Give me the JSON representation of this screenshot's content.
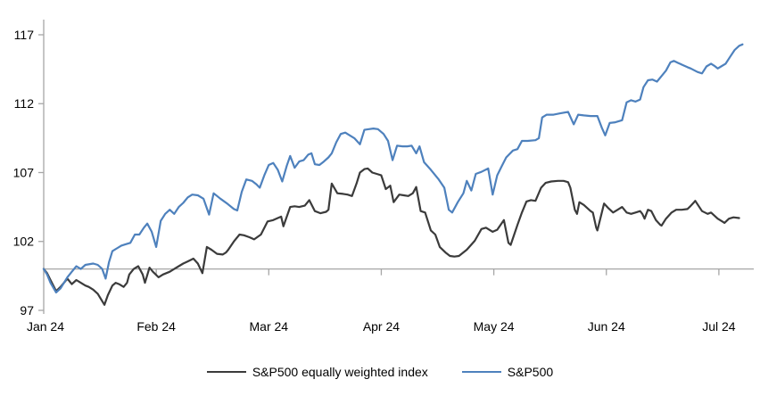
{
  "chart_data": {
    "type": "line",
    "title": "",
    "xlabel": "",
    "ylabel": "",
    "grid": false,
    "axis_color": "#A6A6A6",
    "x_axis": {
      "tick_labels": [
        "Jan 24",
        "Feb 24",
        "Mar 24",
        "Apr 24",
        "May 24",
        "Jun 24",
        "Jul 24"
      ],
      "tick_positions_months": [
        0,
        1,
        2,
        3,
        4,
        5,
        6
      ],
      "range_months": [
        0,
        6.31
      ],
      "baseline_value": 100
    },
    "y_axis": {
      "tick_labels": [
        "97",
        "102",
        "107",
        "112",
        "117"
      ],
      "tick_values": [
        97,
        102,
        107,
        112,
        117
      ],
      "range": [
        96.74,
        118.1
      ]
    },
    "legend": {
      "position": "bottom-center"
    },
    "series": [
      {
        "name": "S&P500 equally weighted index",
        "color": "#3B3B3B",
        "points": [
          [
            0.0,
            100.0
          ],
          [
            0.03,
            99.7
          ],
          [
            0.06,
            99.2
          ],
          [
            0.11,
            98.4
          ],
          [
            0.15,
            98.7
          ],
          [
            0.19,
            99.1
          ],
          [
            0.21,
            99.3
          ],
          [
            0.25,
            98.9
          ],
          [
            0.29,
            99.2
          ],
          [
            0.33,
            99.0
          ],
          [
            0.37,
            98.8
          ],
          [
            0.4,
            98.7
          ],
          [
            0.44,
            98.5
          ],
          [
            0.48,
            98.2
          ],
          [
            0.51,
            97.8
          ],
          [
            0.54,
            97.4
          ],
          [
            0.57,
            98.1
          ],
          [
            0.61,
            98.8
          ],
          [
            0.64,
            99.0
          ],
          [
            0.67,
            98.9
          ],
          [
            0.71,
            98.7
          ],
          [
            0.74,
            99.0
          ],
          [
            0.76,
            99.6
          ],
          [
            0.8,
            100.0
          ],
          [
            0.84,
            100.2
          ],
          [
            0.88,
            99.6
          ],
          [
            0.9,
            99.0
          ],
          [
            0.94,
            100.1
          ],
          [
            0.97,
            99.8
          ],
          [
            1.02,
            99.4
          ],
          [
            1.06,
            99.6
          ],
          [
            1.12,
            99.8
          ],
          [
            1.16,
            100.0
          ],
          [
            1.2,
            100.2
          ],
          [
            1.24,
            100.4
          ],
          [
            1.28,
            100.55
          ],
          [
            1.33,
            100.75
          ],
          [
            1.37,
            100.4
          ],
          [
            1.41,
            99.7
          ],
          [
            1.45,
            101.6
          ],
          [
            1.49,
            101.4
          ],
          [
            1.54,
            101.1
          ],
          [
            1.59,
            101.05
          ],
          [
            1.62,
            101.2
          ],
          [
            1.64,
            101.4
          ],
          [
            1.69,
            102.0
          ],
          [
            1.74,
            102.5
          ],
          [
            1.78,
            102.45
          ],
          [
            1.83,
            102.3
          ],
          [
            1.87,
            102.15
          ],
          [
            1.93,
            102.5
          ],
          [
            1.99,
            103.45
          ],
          [
            2.04,
            103.55
          ],
          [
            2.08,
            103.7
          ],
          [
            2.11,
            103.8
          ],
          [
            2.13,
            103.1
          ],
          [
            2.19,
            104.5
          ],
          [
            2.23,
            104.55
          ],
          [
            2.27,
            104.5
          ],
          [
            2.32,
            104.6
          ],
          [
            2.36,
            105.0
          ],
          [
            2.41,
            104.2
          ],
          [
            2.46,
            104.05
          ],
          [
            2.51,
            104.15
          ],
          [
            2.53,
            104.3
          ],
          [
            2.56,
            106.2
          ],
          [
            2.61,
            105.5
          ],
          [
            2.66,
            105.45
          ],
          [
            2.7,
            105.4
          ],
          [
            2.74,
            105.3
          ],
          [
            2.78,
            106.2
          ],
          [
            2.81,
            107.0
          ],
          [
            2.85,
            107.25
          ],
          [
            2.88,
            107.3
          ],
          [
            2.92,
            107.0
          ],
          [
            2.96,
            106.9
          ],
          [
            3.0,
            106.8
          ],
          [
            3.04,
            105.8
          ],
          [
            3.08,
            106.05
          ],
          [
            3.11,
            104.85
          ],
          [
            3.16,
            105.4
          ],
          [
            3.2,
            105.35
          ],
          [
            3.24,
            105.3
          ],
          [
            3.28,
            105.5
          ],
          [
            3.31,
            105.95
          ],
          [
            3.35,
            104.2
          ],
          [
            3.39,
            104.1
          ],
          [
            3.44,
            102.8
          ],
          [
            3.48,
            102.5
          ],
          [
            3.52,
            101.6
          ],
          [
            3.57,
            101.2
          ],
          [
            3.61,
            100.95
          ],
          [
            3.65,
            100.9
          ],
          [
            3.69,
            100.95
          ],
          [
            3.76,
            101.4
          ],
          [
            3.83,
            102.05
          ],
          [
            3.89,
            102.9
          ],
          [
            3.93,
            103.0
          ],
          [
            3.99,
            102.7
          ],
          [
            4.03,
            102.85
          ],
          [
            4.09,
            103.55
          ],
          [
            4.13,
            101.9
          ],
          [
            4.15,
            101.75
          ],
          [
            4.21,
            103.2
          ],
          [
            4.25,
            104.1
          ],
          [
            4.29,
            104.9
          ],
          [
            4.33,
            105.0
          ],
          [
            4.37,
            104.95
          ],
          [
            4.42,
            105.9
          ],
          [
            4.46,
            106.25
          ],
          [
            4.51,
            106.35
          ],
          [
            4.57,
            106.4
          ],
          [
            4.62,
            106.4
          ],
          [
            4.66,
            106.3
          ],
          [
            4.68,
            105.9
          ],
          [
            4.72,
            104.3
          ],
          [
            4.74,
            104.0
          ],
          [
            4.76,
            104.85
          ],
          [
            4.8,
            104.65
          ],
          [
            4.86,
            104.2
          ],
          [
            4.88,
            104.1
          ],
          [
            4.91,
            103.0
          ],
          [
            4.92,
            102.8
          ],
          [
            4.98,
            104.75
          ],
          [
            5.02,
            104.4
          ],
          [
            5.06,
            104.1
          ],
          [
            5.1,
            104.3
          ],
          [
            5.14,
            104.5
          ],
          [
            5.18,
            104.1
          ],
          [
            5.22,
            104.0
          ],
          [
            5.26,
            104.1
          ],
          [
            5.3,
            104.2
          ],
          [
            5.32,
            104.0
          ],
          [
            5.34,
            103.65
          ],
          [
            5.37,
            104.3
          ],
          [
            5.4,
            104.2
          ],
          [
            5.44,
            103.55
          ],
          [
            5.48,
            103.2
          ],
          [
            5.49,
            103.15
          ],
          [
            5.53,
            103.65
          ],
          [
            5.58,
            104.1
          ],
          [
            5.62,
            104.3
          ],
          [
            5.67,
            104.3
          ],
          [
            5.72,
            104.35
          ],
          [
            5.74,
            104.5
          ],
          [
            5.78,
            104.85
          ],
          [
            5.79,
            104.95
          ],
          [
            5.85,
            104.2
          ],
          [
            5.9,
            104.0
          ],
          [
            5.93,
            104.1
          ],
          [
            5.99,
            103.65
          ],
          [
            6.03,
            103.45
          ],
          [
            6.05,
            103.35
          ],
          [
            6.09,
            103.65
          ],
          [
            6.13,
            103.75
          ],
          [
            6.18,
            103.7
          ]
        ]
      },
      {
        "name": "S&P500",
        "color": "#4E81BD",
        "points": [
          [
            0.0,
            100.0
          ],
          [
            0.03,
            99.6
          ],
          [
            0.06,
            99.0
          ],
          [
            0.11,
            98.3
          ],
          [
            0.15,
            98.6
          ],
          [
            0.21,
            99.4
          ],
          [
            0.25,
            99.8
          ],
          [
            0.29,
            100.2
          ],
          [
            0.33,
            100.0
          ],
          [
            0.37,
            100.3
          ],
          [
            0.44,
            100.4
          ],
          [
            0.48,
            100.3
          ],
          [
            0.52,
            100.0
          ],
          [
            0.55,
            99.3
          ],
          [
            0.58,
            100.5
          ],
          [
            0.61,
            101.3
          ],
          [
            0.65,
            101.5
          ],
          [
            0.69,
            101.7
          ],
          [
            0.73,
            101.8
          ],
          [
            0.77,
            101.9
          ],
          [
            0.81,
            102.5
          ],
          [
            0.85,
            102.5
          ],
          [
            0.89,
            103.0
          ],
          [
            0.92,
            103.3
          ],
          [
            0.96,
            102.7
          ],
          [
            1.0,
            101.6
          ],
          [
            1.04,
            103.5
          ],
          [
            1.08,
            104.0
          ],
          [
            1.12,
            104.3
          ],
          [
            1.16,
            104.0
          ],
          [
            1.2,
            104.5
          ],
          [
            1.24,
            104.8
          ],
          [
            1.28,
            105.2
          ],
          [
            1.32,
            105.4
          ],
          [
            1.37,
            105.35
          ],
          [
            1.42,
            105.1
          ],
          [
            1.47,
            103.95
          ],
          [
            1.51,
            105.5
          ],
          [
            1.57,
            105.1
          ],
          [
            1.63,
            104.75
          ],
          [
            1.69,
            104.35
          ],
          [
            1.72,
            104.25
          ],
          [
            1.76,
            105.6
          ],
          [
            1.8,
            106.5
          ],
          [
            1.85,
            106.4
          ],
          [
            1.89,
            106.15
          ],
          [
            1.92,
            105.9
          ],
          [
            1.96,
            106.8
          ],
          [
            2.0,
            107.55
          ],
          [
            2.04,
            107.7
          ],
          [
            2.08,
            107.2
          ],
          [
            2.12,
            106.35
          ],
          [
            2.16,
            107.5
          ],
          [
            2.19,
            108.2
          ],
          [
            2.23,
            107.35
          ],
          [
            2.27,
            107.8
          ],
          [
            2.31,
            107.9
          ],
          [
            2.35,
            108.3
          ],
          [
            2.38,
            108.4
          ],
          [
            2.41,
            107.6
          ],
          [
            2.45,
            107.55
          ],
          [
            2.49,
            107.8
          ],
          [
            2.53,
            108.1
          ],
          [
            2.56,
            108.4
          ],
          [
            2.6,
            109.2
          ],
          [
            2.64,
            109.8
          ],
          [
            2.68,
            109.9
          ],
          [
            2.72,
            109.7
          ],
          [
            2.76,
            109.5
          ],
          [
            2.81,
            109.05
          ],
          [
            2.85,
            110.1
          ],
          [
            2.89,
            110.15
          ],
          [
            2.93,
            110.2
          ],
          [
            2.97,
            110.15
          ],
          [
            3.02,
            109.8
          ],
          [
            3.06,
            109.3
          ],
          [
            3.1,
            107.9
          ],
          [
            3.14,
            108.95
          ],
          [
            3.19,
            108.9
          ],
          [
            3.23,
            108.9
          ],
          [
            3.27,
            108.95
          ],
          [
            3.31,
            108.4
          ],
          [
            3.34,
            108.9
          ],
          [
            3.38,
            107.75
          ],
          [
            3.44,
            107.2
          ],
          [
            3.51,
            106.5
          ],
          [
            3.56,
            105.9
          ],
          [
            3.6,
            104.3
          ],
          [
            3.63,
            104.1
          ],
          [
            3.68,
            104.85
          ],
          [
            3.73,
            105.5
          ],
          [
            3.76,
            106.4
          ],
          [
            3.8,
            105.7
          ],
          [
            3.84,
            106.9
          ],
          [
            3.89,
            107.05
          ],
          [
            3.95,
            107.3
          ],
          [
            3.99,
            105.4
          ],
          [
            4.03,
            106.8
          ],
          [
            4.07,
            107.45
          ],
          [
            4.11,
            108.1
          ],
          [
            4.17,
            108.6
          ],
          [
            4.21,
            108.7
          ],
          [
            4.25,
            109.3
          ],
          [
            4.3,
            109.3
          ],
          [
            4.37,
            109.35
          ],
          [
            4.4,
            109.5
          ],
          [
            4.43,
            111.0
          ],
          [
            4.47,
            111.2
          ],
          [
            4.53,
            111.2
          ],
          [
            4.59,
            111.3
          ],
          [
            4.66,
            111.4
          ],
          [
            4.71,
            110.5
          ],
          [
            4.75,
            111.2
          ],
          [
            4.8,
            111.15
          ],
          [
            4.86,
            111.1
          ],
          [
            4.92,
            111.1
          ],
          [
            4.96,
            110.25
          ],
          [
            4.99,
            109.7
          ],
          [
            5.03,
            110.6
          ],
          [
            5.08,
            110.65
          ],
          [
            5.14,
            110.8
          ],
          [
            5.18,
            112.1
          ],
          [
            5.22,
            112.25
          ],
          [
            5.26,
            112.15
          ],
          [
            5.3,
            112.3
          ],
          [
            5.33,
            113.2
          ],
          [
            5.37,
            113.7
          ],
          [
            5.41,
            113.75
          ],
          [
            5.45,
            113.6
          ],
          [
            5.49,
            114.0
          ],
          [
            5.53,
            114.4
          ],
          [
            5.57,
            115.0
          ],
          [
            5.6,
            115.1
          ],
          [
            5.64,
            114.95
          ],
          [
            5.68,
            114.8
          ],
          [
            5.72,
            114.65
          ],
          [
            5.75,
            114.55
          ],
          [
            5.81,
            114.3
          ],
          [
            5.85,
            114.2
          ],
          [
            5.89,
            114.7
          ],
          [
            5.93,
            114.9
          ],
          [
            5.96,
            114.75
          ],
          [
            5.99,
            114.55
          ],
          [
            6.02,
            114.7
          ],
          [
            6.06,
            114.9
          ],
          [
            6.1,
            115.4
          ],
          [
            6.14,
            115.9
          ],
          [
            6.18,
            116.2
          ],
          [
            6.21,
            116.3
          ]
        ]
      }
    ]
  },
  "legend": {
    "items": [
      {
        "label": "S&P500 equally weighted index",
        "color": "#3B3B3B"
      },
      {
        "label": "S&P500",
        "color": "#4E81BD"
      }
    ]
  }
}
